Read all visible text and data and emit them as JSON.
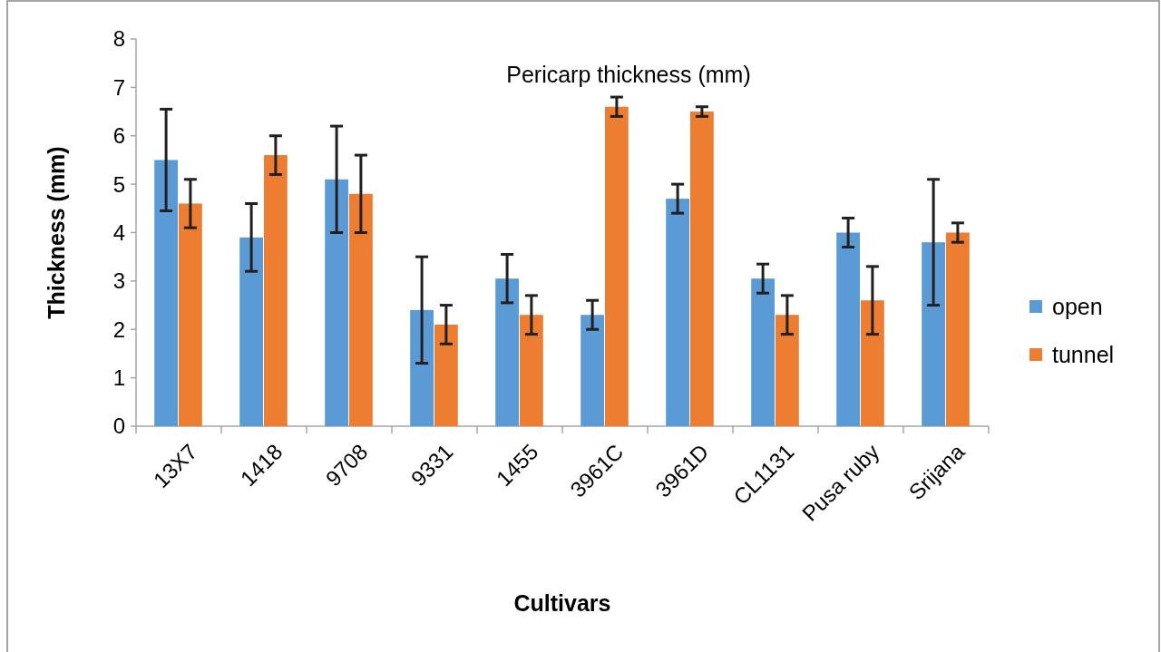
{
  "chart_data": {
    "type": "bar",
    "title": "Pericarp thickness (mm)",
    "xlabel": "Cultivars",
    "ylabel": "Thickness (mm)",
    "categories": [
      "13X7",
      "1418",
      "9708",
      "9331",
      "1455",
      "3961C",
      "3961D",
      "CL1131",
      "Pusa ruby",
      "Srijana"
    ],
    "series": [
      {
        "name": "open",
        "color": "#5b9bd5",
        "values": [
          5.5,
          3.9,
          5.1,
          2.4,
          3.05,
          2.3,
          4.7,
          3.05,
          4.0,
          3.8
        ],
        "errors": [
          1.05,
          0.7,
          1.1,
          1.1,
          0.5,
          0.3,
          0.3,
          0.3,
          0.3,
          1.3
        ]
      },
      {
        "name": "tunnel",
        "color": "#ed7d31",
        "values": [
          4.6,
          5.6,
          4.8,
          2.1,
          2.3,
          6.6,
          6.5,
          2.3,
          2.6,
          4.0
        ],
        "errors": [
          0.5,
          0.4,
          0.8,
          0.4,
          0.4,
          0.2,
          0.1,
          0.4,
          0.7,
          0.2
        ]
      }
    ],
    "ylim": [
      0,
      8
    ],
    "yticks": [
      0,
      1,
      2,
      3,
      4,
      5,
      6,
      7,
      8
    ],
    "grid": false,
    "legend": "right"
  }
}
